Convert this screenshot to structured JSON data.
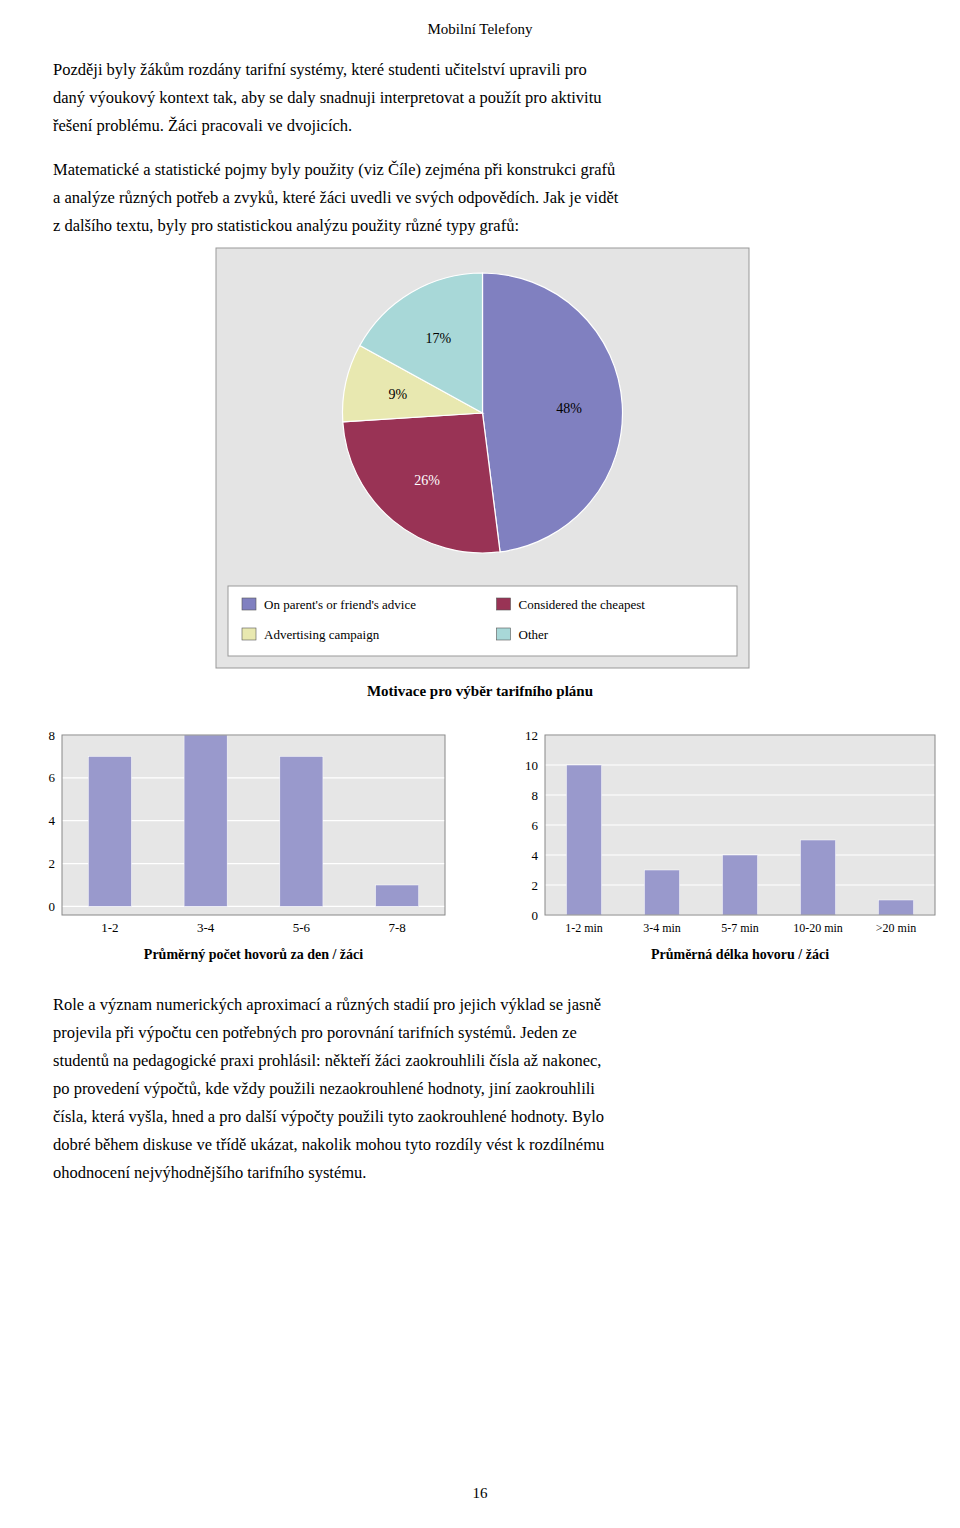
{
  "page_title": "Mobilní Telefony",
  "paragraphs": [
    [
      "Později byly žákům rozdány tarifní systémy, které studenti učitelství upravili pro",
      "daný výoukový kontext tak, aby se daly snadnuji interpretovat a použít pro aktivitu",
      "řešení problému. Žáci pracovali ve dvojicích."
    ],
    [
      "Matematické a statistické pojmy byly použity (viz Číle) zejména při konstrukci grafů",
      "a analýze různých potřeb a zvyků, které žáci uvedli ve svých odpovědích. Jak je vidět",
      "z dalšího textu, byly pro statistickou analýzu použity různé typy grafů:"
    ],
    [
      "Role a význam numerických aproximací a různých stadií pro jejich výklad se jasně",
      "projevila při výpočtu cen potřebných pro porovnání tarifních systémů. Jeden ze",
      "studentů na pedagogické praxi prohlásil: někteří žáci zaokrouhlili čísla až nakonec,",
      "po provedení výpočtů, kde vždy použili nezaokrouhlené hodnoty, jiní zaokrouhlili",
      "čísla, která vyšla, hned a pro další výpočty použili tyto zaokrouhlené hodnoty. Bylo",
      "dobré během diskuse ve třídě ukázat, nakolik mohou tyto rozdíly vést k rozdílnému",
      "ohodnocení nejvýhodnějšího tarifního systému."
    ]
  ],
  "page_number": "16",
  "chart_data": [
    {
      "type": "pie",
      "title": "Motivace pro výběr tarifního plánu",
      "categories": [
        "On parent's or friend's advice",
        "Considered the cheapest",
        "Advertising campaign",
        "Other"
      ],
      "values": [
        48,
        26,
        9,
        17
      ],
      "value_labels": [
        "48%",
        "26%",
        "9%",
        "17%"
      ],
      "colors": [
        "#8080c0",
        "#993355",
        "#e8e8b0",
        "#a8d8d8"
      ],
      "data_labels": true,
      "legend": "bottom"
    },
    {
      "type": "bar",
      "title": "Průměrný počet hovorů za den / žáci",
      "categories": [
        "1-2",
        "3-4",
        "5-6",
        "7-8"
      ],
      "values": [
        7,
        8,
        7,
        1
      ],
      "color": "#9999cc",
      "ylim": [
        -0.4,
        8
      ],
      "yticks": [
        0,
        2,
        4,
        6,
        8
      ],
      "grid": true
    },
    {
      "type": "bar",
      "title": "Průměrná délka hovoru / žáci",
      "categories": [
        "1-2 min",
        "3-4 min",
        "5-7 min",
        "10-20 min",
        ">20 min"
      ],
      "values": [
        10,
        3,
        4,
        5,
        1
      ],
      "color": "#9999cc",
      "ylim": [
        0,
        12
      ],
      "yticks": [
        0,
        2,
        4,
        6,
        8,
        10,
        12
      ],
      "grid": true
    }
  ]
}
